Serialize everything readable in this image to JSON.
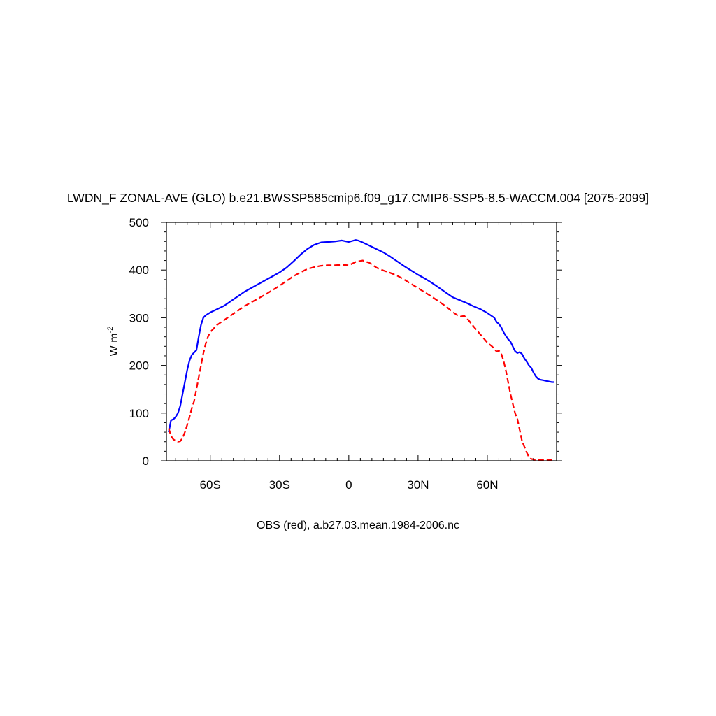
{
  "chart_data": {
    "type": "line",
    "title": "LWDN_F ZONAL-AVE (GLO) b.e21.BWSSP585cmip6.f09_g17.CMIP6-SSP5-8.5-WACCM.004 [2075-2099]",
    "ylabel_main": "W m",
    "ylabel_sup": "-2",
    "caption": "OBS (red), a.b27.03.mean.1984-2006.nc",
    "xlim": [
      -79,
      90
    ],
    "ylim": [
      0,
      500
    ],
    "x_ticks": [
      {
        "value": -60,
        "label": "60S"
      },
      {
        "value": -30,
        "label": "30S"
      },
      {
        "value": 0,
        "label": "0"
      },
      {
        "value": 30,
        "label": "30N"
      },
      {
        "value": 60,
        "label": "60N"
      }
    ],
    "y_ticks": [
      {
        "value": 0,
        "label": "0"
      },
      {
        "value": 100,
        "label": "100"
      },
      {
        "value": 200,
        "label": "200"
      },
      {
        "value": 300,
        "label": "300"
      },
      {
        "value": 400,
        "label": "400"
      },
      {
        "value": 500,
        "label": "500"
      }
    ],
    "grid": false,
    "legend": "none",
    "series": [
      {
        "color": "#0000ff",
        "dash": "solid",
        "x": [
          -78,
          -77,
          -76,
          -75,
          -74,
          -73,
          -72,
          -71,
          -70,
          -69,
          -68,
          -67,
          -66,
          -65,
          -64,
          -63,
          -62,
          -61,
          -60,
          -57,
          -54,
          -51,
          -48,
          -45,
          -42,
          -39,
          -36,
          -33,
          -30,
          -27,
          -24,
          -21,
          -18,
          -15,
          -12,
          -9,
          -6,
          -3,
          0,
          3,
          4,
          6,
          9,
          12,
          15,
          18,
          21,
          24,
          27,
          30,
          33,
          36,
          39,
          42,
          45,
          48,
          51,
          54,
          57,
          60,
          63,
          64,
          65,
          66,
          67,
          68,
          69,
          70,
          71,
          72,
          73,
          74,
          75,
          76,
          77,
          78,
          79,
          80,
          81,
          82,
          83,
          84,
          85,
          86,
          87,
          88,
          89
        ],
        "y": [
          60,
          85,
          87,
          92,
          100,
          115,
          140,
          165,
          190,
          210,
          222,
          227,
          232,
          260,
          285,
          300,
          305,
          308,
          311,
          318,
          325,
          335,
          345,
          355,
          363,
          371,
          379,
          387,
          395,
          405,
          418,
          432,
          444,
          453,
          458,
          459,
          460,
          462,
          459,
          463,
          462,
          458,
          451,
          444,
          437,
          428,
          418,
          408,
          399,
          390,
          382,
          373,
          363,
          353,
          343,
          337,
          331,
          324,
          318,
          310,
          300,
          291,
          287,
          280,
          270,
          262,
          255,
          250,
          240,
          230,
          226,
          228,
          224,
          215,
          208,
          200,
          195,
          185,
          177,
          172,
          170,
          169,
          168,
          167,
          166,
          165,
          165
        ]
      },
      {
        "color": "#ff0000",
        "dash": "dashed",
        "x": [
          -78,
          -77,
          -76,
          -75,
          -74,
          -73,
          -72,
          -71,
          -70,
          -69,
          -68,
          -67,
          -66,
          -65,
          -64,
          -63,
          -62,
          -61,
          -60,
          -57,
          -54,
          -51,
          -48,
          -45,
          -42,
          -39,
          -36,
          -33,
          -30,
          -27,
          -24,
          -21,
          -18,
          -15,
          -12,
          -9,
          -6,
          -3,
          0,
          3,
          6,
          9,
          12,
          15,
          18,
          21,
          24,
          27,
          30,
          33,
          36,
          39,
          42,
          45,
          48,
          50,
          51,
          52,
          54,
          57,
          60,
          62,
          63,
          64,
          65,
          66,
          67,
          68,
          69,
          70,
          71,
          72,
          73,
          74,
          75,
          76,
          77,
          78,
          79,
          80,
          81,
          82,
          83,
          84,
          85,
          86,
          87,
          88,
          89
        ],
        "y": [
          68,
          52,
          45,
          42,
          40,
          41,
          48,
          60,
          75,
          92,
          110,
          125,
          150,
          175,
          200,
          225,
          245,
          260,
          270,
          285,
          295,
          305,
          315,
          325,
          333,
          341,
          349,
          358,
          367,
          377,
          387,
          395,
          402,
          406,
          409,
          410,
          410,
          411,
          410,
          417,
          420,
          415,
          405,
          399,
          394,
          388,
          380,
          371,
          362,
          353,
          344,
          334,
          324,
          312,
          302,
          304,
          300,
          294,
          282,
          265,
          248,
          240,
          235,
          229,
          231,
          225,
          210,
          190,
          165,
          140,
          120,
          100,
          88,
          65,
          42,
          30,
          18,
          8,
          4,
          3,
          2,
          2,
          2,
          2,
          2,
          2,
          2,
          2,
          2
        ]
      }
    ]
  }
}
